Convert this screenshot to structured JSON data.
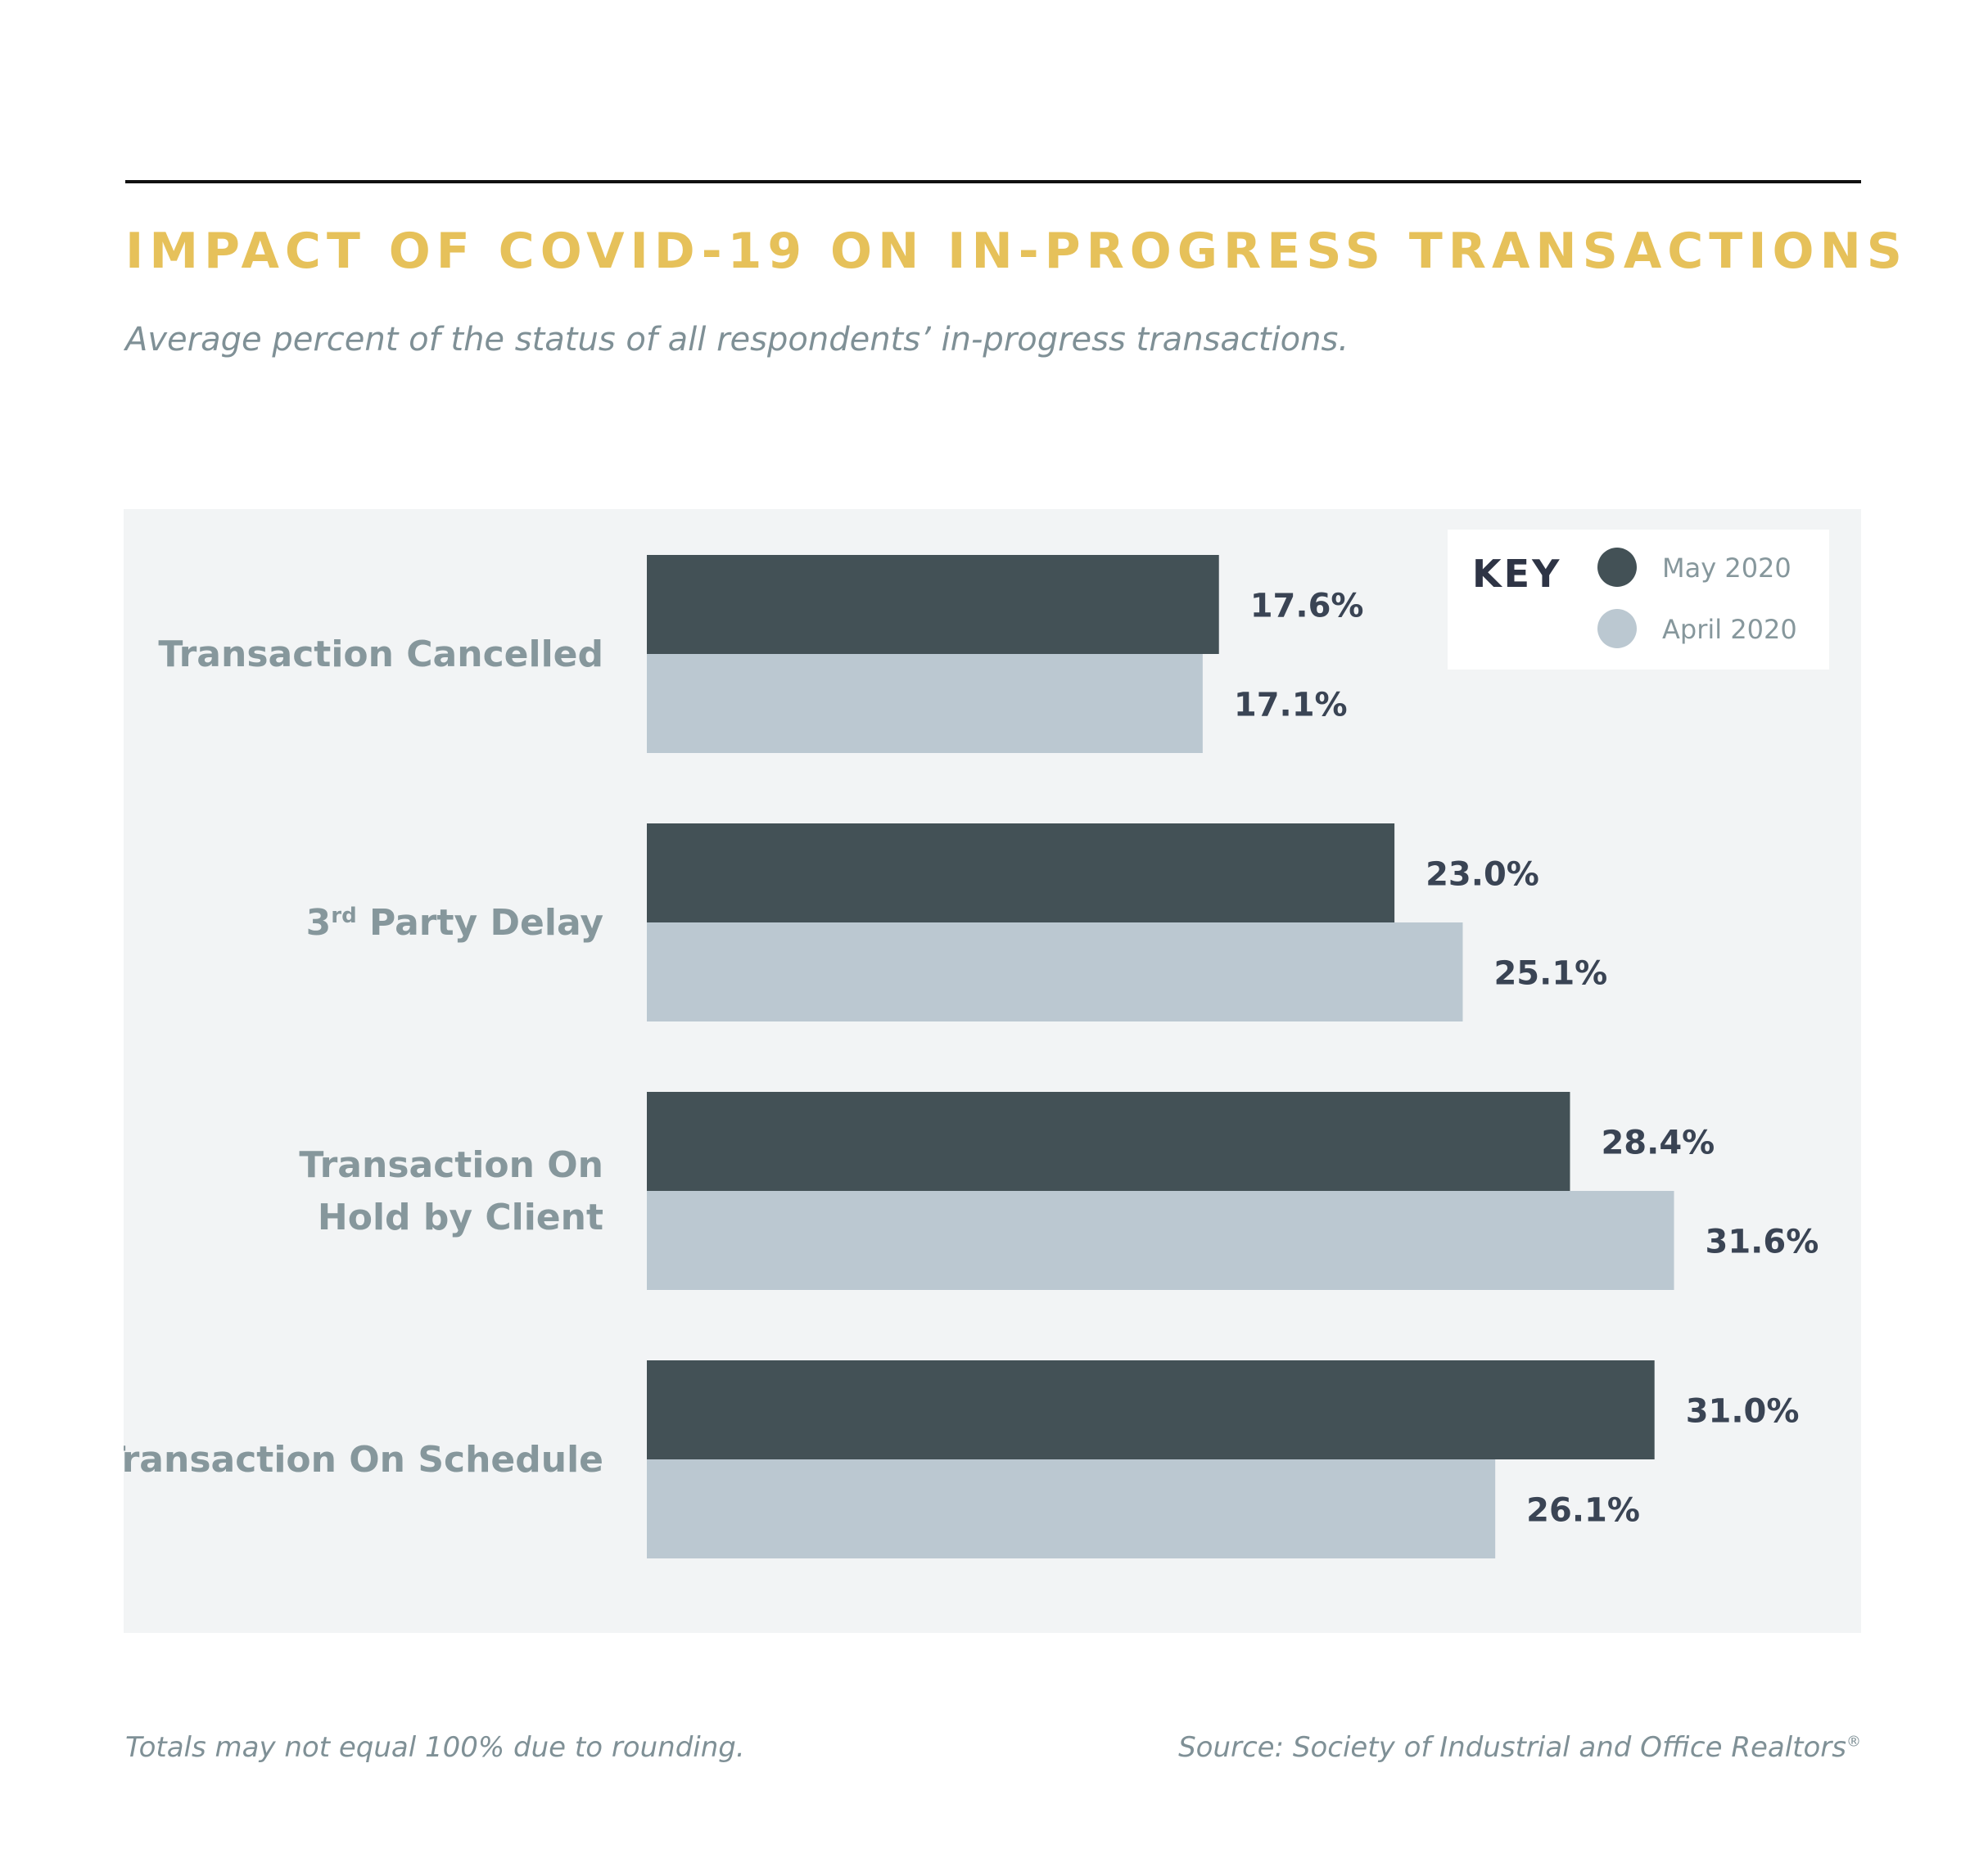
{
  "header": {
    "title": "IMPACT OF COVID-19 ON IN-PROGRESS TRANSACTIONS",
    "subtitle": "Average percent of the status of all respondents’ in-progress transactions."
  },
  "footer": {
    "note": "Totals may not equal 100% due to rounding.",
    "source": "Source: Society of Industrial and Office Realtors",
    "source_mark": "®"
  },
  "chart_data": {
    "type": "bar",
    "orientation": "horizontal",
    "title": "IMPACT OF COVID-19 ON IN-PROGRESS TRANSACTIONS",
    "subtitle": "Average percent of the status of all respondents’ in-progress transactions.",
    "categories": [
      [
        "Transaction Cancelled"
      ],
      [
        "3rd Party Delay"
      ],
      [
        "Transaction On",
        "Hold by Client"
      ],
      [
        "Transaction On Schedule"
      ]
    ],
    "series": [
      {
        "name": "May 2020",
        "values": [
          17.6,
          23.0,
          28.4,
          31.0
        ],
        "labels": [
          "17.6%",
          "23.0%",
          "28.4%",
          "31.0%"
        ],
        "color": "#435156"
      },
      {
        "name": "April 2020",
        "values": [
          17.1,
          25.1,
          31.6,
          26.1
        ],
        "labels": [
          "17.1%",
          "25.1%",
          "31.6%",
          "26.1%"
        ],
        "color": "#bbc8d1"
      }
    ],
    "xlim": [
      0,
      40
    ],
    "grid": false,
    "legend": {
      "title": "KEY",
      "placement": "top-right"
    },
    "colors": {
      "panel": "#f2f4f5",
      "category_label": "#86979c",
      "value_label": "#3a4454",
      "legend_text": "#86979c",
      "legend_title": "#2e3445"
    }
  }
}
